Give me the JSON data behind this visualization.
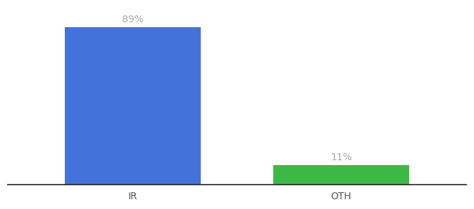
{
  "categories": [
    "IR",
    "OTH"
  ],
  "values": [
    89,
    11
  ],
  "bar_colors": [
    "#4472db",
    "#3cb844"
  ],
  "value_labels": [
    "89%",
    "11%"
  ],
  "background_color": "#ffffff",
  "ylim": [
    0,
    100
  ],
  "bar_width": 0.65,
  "label_fontsize": 10,
  "tick_fontsize": 10,
  "text_color": "#aaaaaa"
}
